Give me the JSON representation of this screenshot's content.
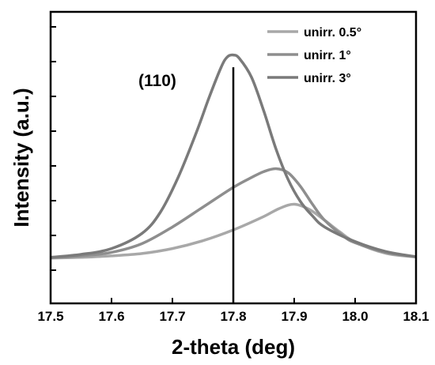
{
  "chart_data": {
    "type": "line",
    "xlabel": "2-theta (deg)",
    "ylabel": "Intensity (a.u.)",
    "xlim": [
      17.5,
      18.1
    ],
    "ylim": [
      0,
      1
    ],
    "x_ticks": [
      "17.5",
      "17.6",
      "17.7",
      "17.8",
      "17.9",
      "18.0",
      "18.1"
    ],
    "y_tick_count": 8,
    "y_tick_labels_shown": false,
    "grid": false,
    "legend_position": "top-right",
    "annotation": {
      "text": "(110)",
      "x": 17.8,
      "line_from_y": 0.0,
      "line_to_y": 0.81
    },
    "series": [
      {
        "name": "unirr. 0.5°",
        "color": "#a8a8a8",
        "points": [
          [
            17.5,
            0.155
          ],
          [
            17.55,
            0.158
          ],
          [
            17.6,
            0.163
          ],
          [
            17.65,
            0.171
          ],
          [
            17.7,
            0.188
          ],
          [
            17.75,
            0.215
          ],
          [
            17.8,
            0.252
          ],
          [
            17.85,
            0.298
          ],
          [
            17.875,
            0.325
          ],
          [
            17.9,
            0.34
          ],
          [
            17.925,
            0.322
          ],
          [
            17.95,
            0.285
          ],
          [
            17.975,
            0.245
          ],
          [
            18.0,
            0.21
          ],
          [
            18.05,
            0.172
          ],
          [
            18.1,
            0.159
          ]
        ]
      },
      {
        "name": "unirr. 1°",
        "color": "#8e8e8e",
        "points": [
          [
            17.5,
            0.157
          ],
          [
            17.55,
            0.163
          ],
          [
            17.6,
            0.175
          ],
          [
            17.65,
            0.205
          ],
          [
            17.7,
            0.262
          ],
          [
            17.75,
            0.33
          ],
          [
            17.8,
            0.398
          ],
          [
            17.83,
            0.432
          ],
          [
            17.85,
            0.452
          ],
          [
            17.87,
            0.462
          ],
          [
            17.89,
            0.448
          ],
          [
            17.91,
            0.402
          ],
          [
            17.93,
            0.34
          ],
          [
            17.95,
            0.285
          ],
          [
            17.98,
            0.232
          ],
          [
            18.0,
            0.208
          ],
          [
            18.05,
            0.175
          ],
          [
            18.1,
            0.16
          ]
        ]
      },
      {
        "name": "unirr. 3°",
        "color": "#7a7a7a",
        "points": [
          [
            17.5,
            0.158
          ],
          [
            17.55,
            0.168
          ],
          [
            17.6,
            0.188
          ],
          [
            17.65,
            0.24
          ],
          [
            17.68,
            0.312
          ],
          [
            17.71,
            0.435
          ],
          [
            17.74,
            0.59
          ],
          [
            17.76,
            0.705
          ],
          [
            17.78,
            0.81
          ],
          [
            17.79,
            0.845
          ],
          [
            17.8,
            0.852
          ],
          [
            17.81,
            0.84
          ],
          [
            17.83,
            0.775
          ],
          [
            17.85,
            0.66
          ],
          [
            17.87,
            0.53
          ],
          [
            17.89,
            0.425
          ],
          [
            17.91,
            0.35
          ],
          [
            17.93,
            0.3
          ],
          [
            17.95,
            0.262
          ],
          [
            18.0,
            0.212
          ],
          [
            18.05,
            0.178
          ],
          [
            18.1,
            0.16
          ]
        ]
      }
    ]
  }
}
